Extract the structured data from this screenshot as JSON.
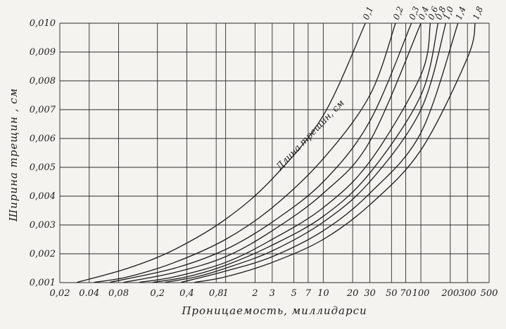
{
  "chart_data": {
    "type": "line",
    "title": "",
    "xlabel": "Проницаемость, миллидарси",
    "ylabel": "Ширина  трещин , см",
    "x_scale": "log",
    "xlim": [
      0.02,
      500
    ],
    "ylim": [
      0.001,
      0.01
    ],
    "grid": true,
    "x_tick_labels": [
      "0,02",
      "0.04",
      "0,08",
      "0,2",
      "0,4",
      "0,8",
      "1",
      "2",
      "3",
      "5",
      "7",
      "10",
      "20",
      "30",
      "50",
      "70",
      "100",
      "200",
      "300",
      "500"
    ],
    "x_tick_values": [
      0.02,
      0.04,
      0.08,
      0.2,
      0.4,
      0.8,
      1,
      2,
      3,
      5,
      7,
      10,
      20,
      30,
      50,
      70,
      100,
      200,
      300,
      500
    ],
    "y_tick_labels": [
      "0,001",
      "0,002",
      "0,003",
      "0,004",
      "0,005",
      "0,006",
      "0,007",
      "0,008",
      "0,009",
      "0,010"
    ],
    "y_tick_values": [
      0.001,
      0.002,
      0.003,
      0.004,
      0.005,
      0.006,
      0.007,
      0.008,
      0.009,
      0.01
    ],
    "annotation": "Длина трещин, см",
    "series": [
      {
        "name": "0,1",
        "x": [
          0.03,
          0.1,
          0.3,
          1,
          3,
          10,
          27
        ],
        "y": [
          0.00101,
          0.0015,
          0.00215,
          0.0032,
          0.0046,
          0.0068,
          0.01
        ]
      },
      {
        "name": "0,2",
        "x": [
          0.045,
          0.1,
          0.3,
          1,
          3,
          10,
          30,
          55
        ],
        "y": [
          0.00101,
          0.0012,
          0.0017,
          0.0025,
          0.0036,
          0.0053,
          0.0075,
          0.01
        ]
      },
      {
        "name": "0,3",
        "x": [
          0.065,
          0.3,
          1,
          3,
          10,
          30,
          80
        ],
        "y": [
          0.00101,
          0.0015,
          0.00215,
          0.0031,
          0.0045,
          0.0066,
          0.01
        ]
      },
      {
        "name": "0,4",
        "x": [
          0.09,
          0.3,
          1,
          3,
          10,
          30,
          100
        ],
        "y": [
          0.00101,
          0.00135,
          0.0019,
          0.0028,
          0.0041,
          0.0059,
          0.01
        ]
      },
      {
        "name": "0,6",
        "x": [
          0.13,
          0.3,
          1,
          3,
          10,
          30,
          100,
          125
        ],
        "y": [
          0.00101,
          0.0012,
          0.0017,
          0.0025,
          0.0036,
          0.0052,
          0.0082,
          0.01
        ]
      },
      {
        "name": "0,8",
        "x": [
          0.18,
          0.4,
          1,
          3,
          10,
          30,
          100,
          150
        ],
        "y": [
          0.00101,
          0.0012,
          0.0016,
          0.0023,
          0.0033,
          0.0048,
          0.0075,
          0.01
        ]
      },
      {
        "name": "1,0",
        "x": [
          0.24,
          0.5,
          1,
          3,
          10,
          30,
          100,
          180
        ],
        "y": [
          0.00101,
          0.0012,
          0.0015,
          0.0021,
          0.0031,
          0.0045,
          0.007,
          0.01
        ]
      },
      {
        "name": "1,4",
        "x": [
          0.35,
          1,
          3,
          10,
          30,
          100,
          240
        ],
        "y": [
          0.00101,
          0.0014,
          0.0019,
          0.0028,
          0.0041,
          0.0062,
          0.01
        ]
      },
      {
        "name": "1,8",
        "x": [
          0.48,
          1,
          3,
          10,
          30,
          100,
          300,
          360
        ],
        "y": [
          0.00101,
          0.0012,
          0.0017,
          0.0025,
          0.0037,
          0.0056,
          0.0088,
          0.01
        ]
      }
    ]
  }
}
